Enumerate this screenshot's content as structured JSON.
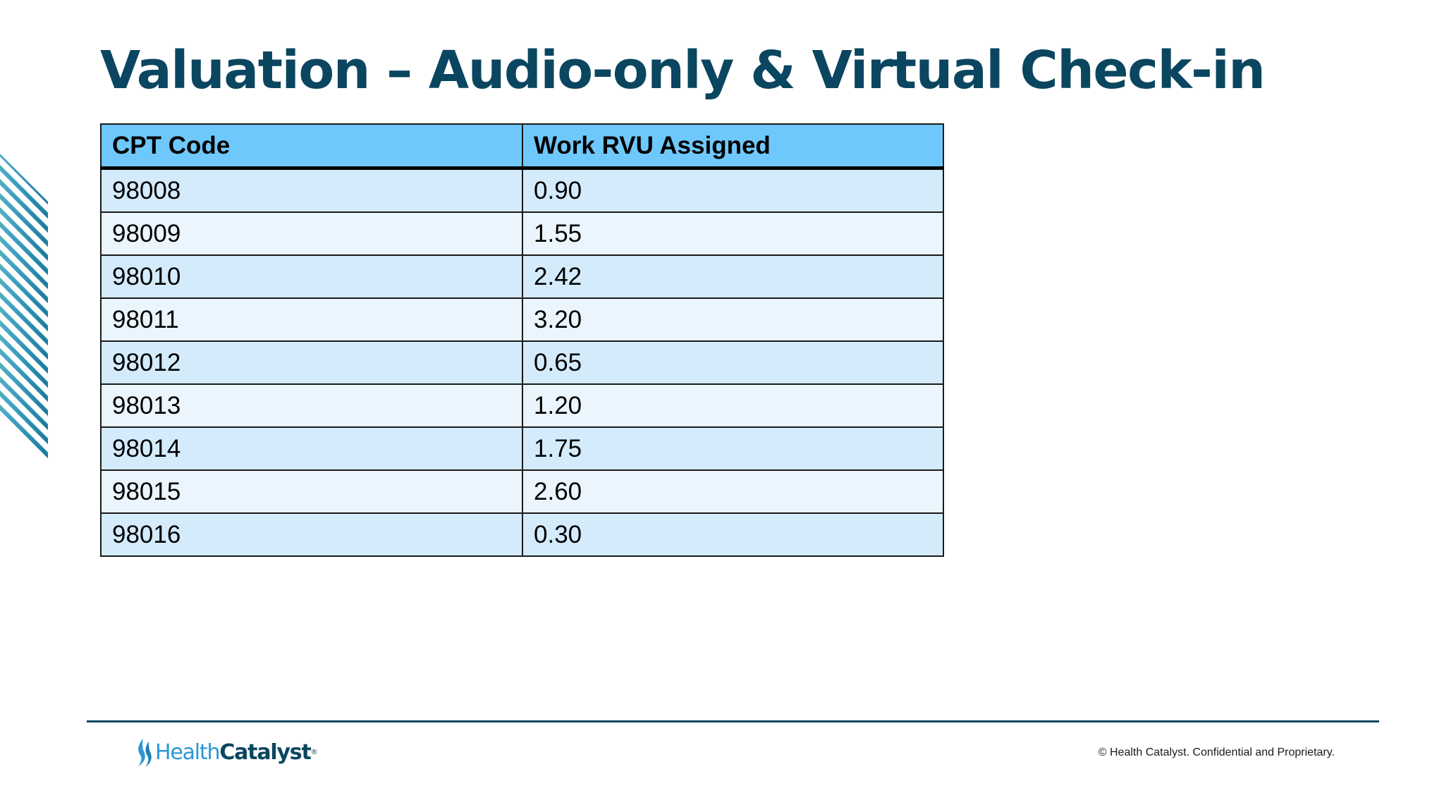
{
  "slide": {
    "title": "Valuation – Audio-only & Virtual Check-in"
  },
  "table": {
    "headers": [
      "CPT Code",
      "Work RVU Assigned"
    ],
    "rows": [
      [
        "98008",
        "0.90"
      ],
      [
        "98009",
        "1.55"
      ],
      [
        "98010",
        "2.42"
      ],
      [
        "98011",
        "3.20"
      ],
      [
        "98012",
        "0.65"
      ],
      [
        "98013",
        "1.20"
      ],
      [
        "98014",
        "1.75"
      ],
      [
        "98015",
        "2.60"
      ],
      [
        "98016",
        "0.30"
      ]
    ]
  },
  "footer": {
    "logo_health": "Health",
    "logo_catalyst": "Catalyst",
    "logo_reg": "®",
    "copyright": "© Health Catalyst. Confidential and Proprietary."
  },
  "colors": {
    "title": "#0b4660",
    "header_fill": "#6fc8fb",
    "row_fill_odd": "#d4ebfc",
    "row_fill_even": "#ebf5fd",
    "brand_blue": "#2a97d4",
    "brand_navy": "#0b4660"
  },
  "icons": {
    "decoration": "diagonal-stripes-graphic",
    "logo": "health-catalyst-flame-icon"
  }
}
